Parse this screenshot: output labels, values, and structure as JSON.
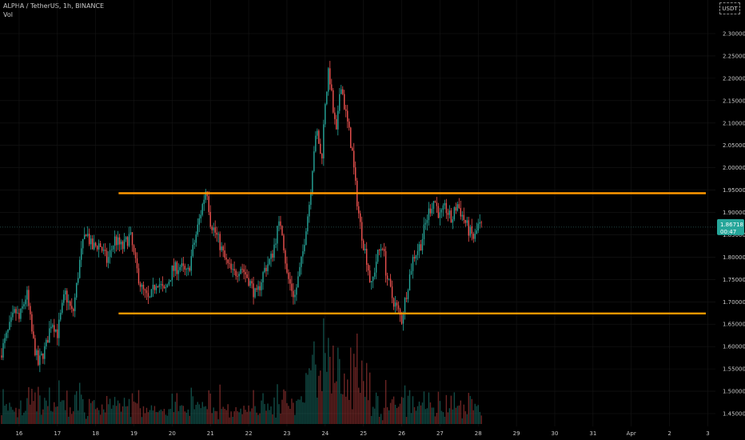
{
  "header": {
    "symbol_line": "ALPHA / TetherUS, 1h, BINANCE",
    "indicator": "Vol"
  },
  "unit_button": "USDT",
  "price_tag": {
    "price": "1.86718",
    "countdown": "00:47"
  },
  "colors": {
    "up": "#26a69a",
    "down": "#ef5350",
    "level_line": "#ff9800",
    "background": "#000000",
    "price_tag_bg": "#26a69a"
  },
  "chart_data": {
    "type": "candlestick",
    "xlabel": "",
    "ylabel": "",
    "ylim": [
      1.425,
      2.31
    ],
    "xlim": [
      15.5,
      34.2
    ],
    "y_ticks": [
      "1.45000",
      "1.50000",
      "1.55000",
      "1.60000",
      "1.65000",
      "1.70000",
      "1.75000",
      "1.80000",
      "1.85000",
      "1.90000",
      "1.95000",
      "2.00000",
      "2.05000",
      "2.10000",
      "2.15000",
      "2.20000",
      "2.25000",
      "2.30000"
    ],
    "y_tick_values": [
      1.45,
      1.5,
      1.55,
      1.6,
      1.65,
      1.7,
      1.75,
      1.8,
      1.85,
      1.9,
      1.95,
      2.0,
      2.05,
      2.1,
      2.15,
      2.2,
      2.25,
      2.3
    ],
    "x_ticks": [
      "16",
      "17",
      "18",
      "19",
      "20",
      "21",
      "22",
      "23",
      "24",
      "25",
      "26",
      "27",
      "28",
      "29",
      "30",
      "31",
      "Apr",
      "2",
      "3",
      "4"
    ],
    "x_tick_values": [
      16,
      17,
      18,
      19,
      20,
      21,
      22,
      23,
      24,
      25,
      26,
      27,
      28,
      29,
      30,
      31,
      32,
      33,
      34,
      35
    ],
    "last_price": 1.86718,
    "horizontal_levels": [
      {
        "y": 1.943,
        "x_start": 18.6,
        "x_end": 33.95
      },
      {
        "y": 1.674,
        "x_start": 18.6,
        "x_end": 33.95
      }
    ],
    "price_path": [
      [
        15.5,
        1.58
      ],
      [
        15.7,
        1.63
      ],
      [
        15.9,
        1.68
      ],
      [
        16.0,
        1.66
      ],
      [
        16.2,
        1.72
      ],
      [
        16.35,
        1.62
      ],
      [
        16.5,
        1.56
      ],
      [
        16.7,
        1.6
      ],
      [
        16.85,
        1.66
      ],
      [
        17.0,
        1.63
      ],
      [
        17.2,
        1.72
      ],
      [
        17.4,
        1.67
      ],
      [
        17.6,
        1.8
      ],
      [
        17.75,
        1.86
      ],
      [
        17.9,
        1.82
      ],
      [
        18.1,
        1.83
      ],
      [
        18.3,
        1.79
      ],
      [
        18.5,
        1.84
      ],
      [
        18.7,
        1.82
      ],
      [
        18.9,
        1.85
      ],
      [
        19.05,
        1.78
      ],
      [
        19.2,
        1.73
      ],
      [
        19.4,
        1.7
      ],
      [
        19.6,
        1.75
      ],
      [
        19.8,
        1.72
      ],
      [
        20.0,
        1.77
      ],
      [
        20.2,
        1.78
      ],
      [
        20.4,
        1.76
      ],
      [
        20.6,
        1.84
      ],
      [
        20.7,
        1.88
      ],
      [
        20.8,
        1.92
      ],
      [
        20.9,
        1.96
      ],
      [
        21.0,
        1.88
      ],
      [
        21.2,
        1.84
      ],
      [
        21.4,
        1.79
      ],
      [
        21.6,
        1.76
      ],
      [
        21.8,
        1.78
      ],
      [
        22.0,
        1.75
      ],
      [
        22.2,
        1.71
      ],
      [
        22.4,
        1.77
      ],
      [
        22.6,
        1.8
      ],
      [
        22.75,
        1.86
      ],
      [
        22.85,
        1.88
      ],
      [
        23.0,
        1.76
      ],
      [
        23.2,
        1.71
      ],
      [
        23.4,
        1.8
      ],
      [
        23.5,
        1.87
      ],
      [
        23.6,
        1.93
      ],
      [
        23.7,
        2.04
      ],
      [
        23.8,
        2.08
      ],
      [
        23.9,
        2.01
      ],
      [
        24.0,
        2.15
      ],
      [
        24.1,
        2.22
      ],
      [
        24.2,
        2.13
      ],
      [
        24.3,
        2.07
      ],
      [
        24.4,
        2.2
      ],
      [
        24.5,
        2.14
      ],
      [
        24.6,
        2.09
      ],
      [
        24.7,
        2.04
      ],
      [
        24.8,
        1.95
      ],
      [
        24.9,
        1.88
      ],
      [
        25.0,
        1.83
      ],
      [
        25.1,
        1.79
      ],
      [
        25.2,
        1.73
      ],
      [
        25.35,
        1.8
      ],
      [
        25.5,
        1.83
      ],
      [
        25.6,
        1.76
      ],
      [
        25.75,
        1.71
      ],
      [
        25.9,
        1.68
      ],
      [
        26.0,
        1.66
      ],
      [
        26.1,
        1.71
      ],
      [
        26.3,
        1.8
      ],
      [
        26.5,
        1.83
      ],
      [
        26.7,
        1.9
      ],
      [
        26.85,
        1.93
      ],
      [
        27.0,
        1.89
      ],
      [
        27.15,
        1.91
      ],
      [
        27.3,
        1.88
      ],
      [
        27.45,
        1.92
      ],
      [
        27.6,
        1.89
      ],
      [
        27.75,
        1.86
      ],
      [
        27.9,
        1.84
      ],
      [
        28.0,
        1.87
      ],
      [
        28.1,
        1.86718
      ]
    ]
  }
}
